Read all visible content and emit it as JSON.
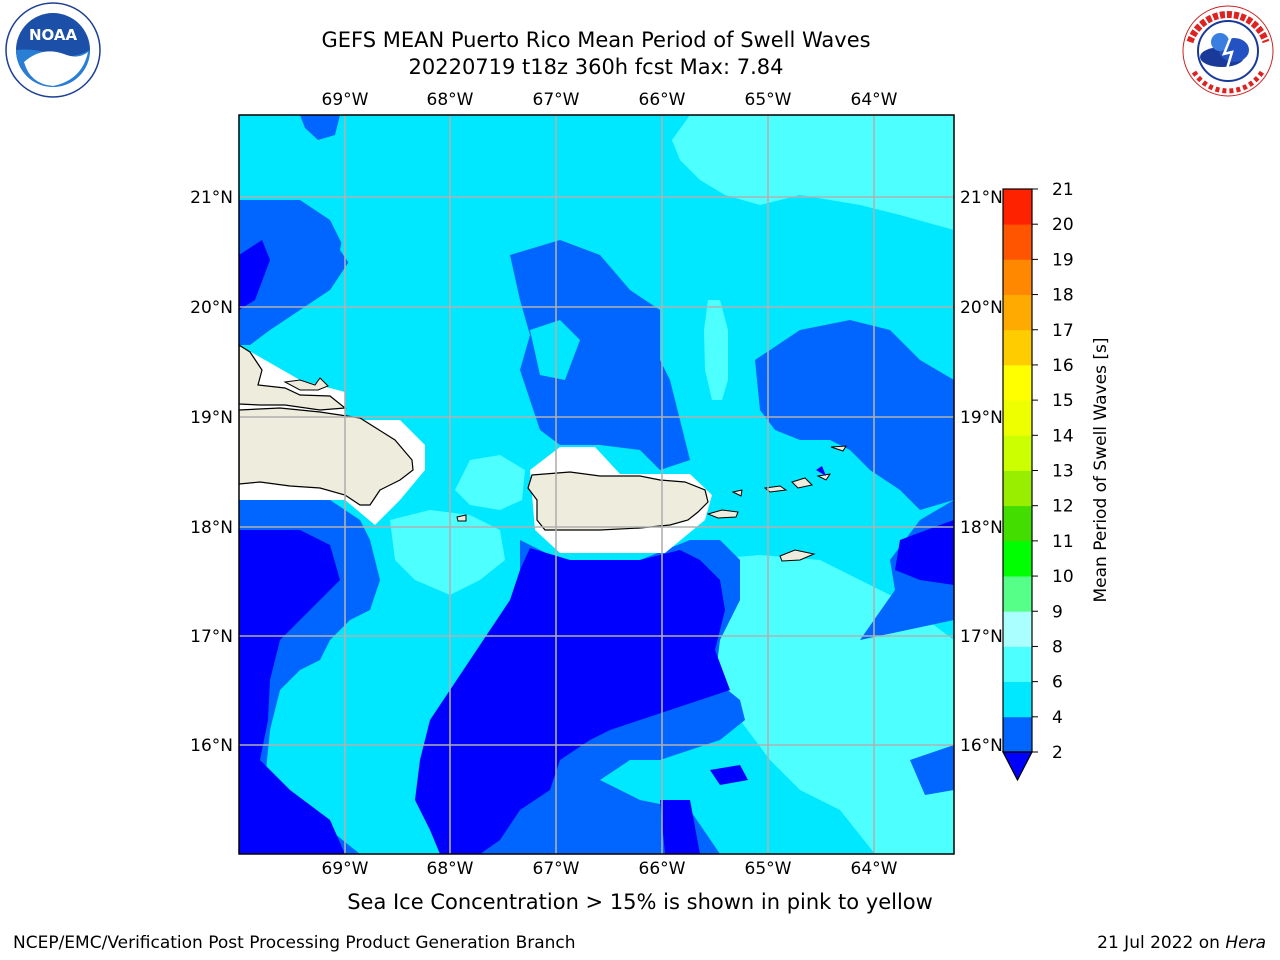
{
  "header": {
    "title_line1": "GEFS MEAN Puerto Rico Mean Period of Swell Waves",
    "title_line2": "20220719 t18z 360h fcst   Max: 7.84"
  },
  "logos": {
    "left": "NOAA",
    "left_ring_text": "NATIONAL OCEANIC AND ATMOSPHERIC ADMINISTRATION · U.S. DEPARTMENT OF COMMERCE",
    "right_ring_text": "NATIONAL WEATHER SERVICE"
  },
  "map": {
    "lon_labels": [
      "69°W",
      "68°W",
      "67°W",
      "66°W",
      "65°W",
      "64°W"
    ],
    "lat_labels": [
      "21°N",
      "20°N",
      "19°N",
      "18°N",
      "17°N",
      "16°N"
    ],
    "colors": {
      "land": "#eeecdc",
      "grid": "#b0b0b0"
    }
  },
  "colorbar": {
    "label": "Mean Period of Swell Waves [s]",
    "ticks": [
      "2",
      "4",
      "6",
      "8",
      "9",
      "10",
      "11",
      "12",
      "13",
      "14",
      "15",
      "16",
      "17",
      "18",
      "19",
      "20",
      "21"
    ],
    "colors": [
      "#0000ff",
      "#0066ff",
      "#00e8ff",
      "#4dffff",
      "#aaffff",
      "#55ff88",
      "#00ff00",
      "#44dd00",
      "#99ee00",
      "#ccff00",
      "#eeff00",
      "#ffff00",
      "#ffcc00",
      "#ffaa00",
      "#ff8800",
      "#ff5500",
      "#ff2200",
      "#ff0000"
    ]
  },
  "footer": {
    "caption": "Sea Ice Concentration > 15% is shown in pink to yellow",
    "credit": "NCEP/EMC/Verification Post Processing Product Generation Branch",
    "date": "21 Jul 2022 on",
    "machine": "Hera"
  }
}
